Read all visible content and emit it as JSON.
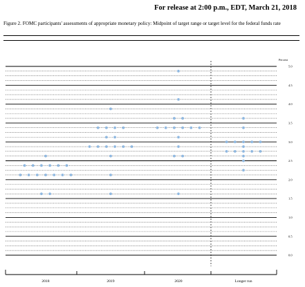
{
  "header": {
    "release": "For release at 2:00 p.m., EDT, March 21, 2018"
  },
  "figure": {
    "caption": "Figure 2. FOMC participants' assessments of appropriate monetary policy: Midpoint of target range or target level for the federal funds rate"
  },
  "chart_data": {
    "type": "scatter",
    "title": "",
    "ylabel": "Percent",
    "ylim": [
      0,
      5
    ],
    "y_ticks": [
      "5.0",
      "4.5",
      "4.0",
      "3.5",
      "3.0",
      "2.5",
      "2.0",
      "1.5",
      "1.0",
      "0.5",
      "0.0"
    ],
    "categories": [
      "2018",
      "2019",
      "2020",
      "Longer run"
    ],
    "grid": "dotted lines every 0.125, solid lines every 0.5",
    "dot_color": "#8fb8e0",
    "series": [
      {
        "category": "2018",
        "points": [
          {
            "y": 2.625,
            "count": 1
          },
          {
            "y": 2.375,
            "count": 6
          },
          {
            "y": 2.125,
            "count": 7
          },
          {
            "y": 1.625,
            "count": 2
          }
        ]
      },
      {
        "category": "2019",
        "points": [
          {
            "y": 3.875,
            "count": 1
          },
          {
            "y": 3.375,
            "count": 4
          },
          {
            "y": 3.125,
            "count": 2
          },
          {
            "y": 2.875,
            "count": 6
          },
          {
            "y": 2.625,
            "count": 1
          },
          {
            "y": 2.125,
            "count": 1
          },
          {
            "y": 1.625,
            "count": 1
          }
        ]
      },
      {
        "category": "2020",
        "points": [
          {
            "y": 4.875,
            "count": 1
          },
          {
            "y": 4.125,
            "count": 1
          },
          {
            "y": 3.625,
            "count": 2
          },
          {
            "y": 3.375,
            "count": 6
          },
          {
            "y": 3.125,
            "count": 1
          },
          {
            "y": 2.875,
            "count": 1
          },
          {
            "y": 2.625,
            "count": 2
          },
          {
            "y": 1.625,
            "count": 1
          }
        ]
      },
      {
        "category": "Longer run",
        "points": [
          {
            "y": 3.625,
            "count": 1
          },
          {
            "y": 3.375,
            "count": 1
          },
          {
            "y": 3.0,
            "count": 5
          },
          {
            "y": 2.875,
            "count": 1
          },
          {
            "y": 2.75,
            "count": 5
          },
          {
            "y": 2.625,
            "count": 1
          },
          {
            "y": 2.5,
            "count": 1
          },
          {
            "y": 2.25,
            "count": 1
          }
        ]
      }
    ]
  }
}
